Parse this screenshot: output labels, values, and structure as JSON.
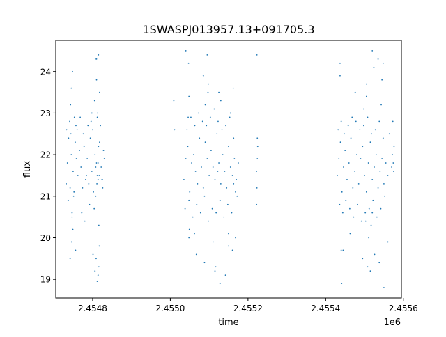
{
  "chart_data": {
    "type": "scatter",
    "title": "1SWASPJ013957.13+091705.3",
    "xlabel": "time",
    "ylabel": "flux",
    "x_offset_label": "1e6",
    "xlim": [
      2454705,
      2455595
    ],
    "ylim": [
      18.55,
      24.75
    ],
    "x_ticks": [
      2454800,
      2455000,
      2455200,
      2455400,
      2455600
    ],
    "x_tick_labels": [
      "2.4548",
      "2.4550",
      "2.4552",
      "2.4554",
      "2.4556"
    ],
    "y_ticks": [
      19,
      20,
      21,
      22,
      23,
      24
    ],
    "y_tick_labels": [
      "19",
      "20",
      "21",
      "22",
      "23",
      "24"
    ],
    "grid": false,
    "marker_color": "#1f77b4",
    "series": [
      {
        "x": [
          2454732,
          2454735,
          2454738,
          2454742,
          2454745,
          2454748,
          2454752,
          2454755,
          2454758,
          2454762,
          2454766,
          2454770,
          2454774,
          2454778,
          2454782,
          2454786,
          2454790,
          2454794,
          2454798,
          2454802,
          2454806,
          2454810,
          2454814,
          2454818,
          2454822,
          2454826,
          2454830,
          2454733,
          2454737,
          2454741,
          2454744,
          2454747,
          2454751,
          2454757,
          2454760,
          2454768,
          2454772,
          2454776,
          2454780,
          2454784,
          2454788,
          2454792,
          2454796,
          2454800,
          2454804,
          2454808,
          2454812,
          2454816,
          2454820,
          2454824,
          2454828,
          2454743,
          2454746,
          2454749,
          2454753,
          2454756,
          2454798,
          2454801,
          2454805,
          2454809,
          2454813,
          2454817,
          2454811,
          2454815,
          2454745,
          2454748,
          2454807,
          2454810,
          2454816,
          2454814,
          2454742,
          2454806,
          2454812,
          2454747,
          2454810,
          2454815,
          2454808,
          2454812,
          2454750,
          2454814,
          2454817,
          2454825,
          2454818,
          2455035,
          2455040,
          2455045,
          2455050,
          2455055,
          2455060,
          2455065,
          2455070,
          2455075,
          2455080,
          2455085,
          2455090,
          2455095,
          2455100,
          2455105,
          2455110,
          2455115,
          2455120,
          2455125,
          2455130,
          2455135,
          2455140,
          2455145,
          2455150,
          2455155,
          2455160,
          2455165,
          2455170,
          2455175,
          2455038,
          2455043,
          2455048,
          2455053,
          2455058,
          2455063,
          2455068,
          2455073,
          2455078,
          2455083,
          2455088,
          2455093,
          2455098,
          2455103,
          2455108,
          2455113,
          2455118,
          2455123,
          2455128,
          2455133,
          2455138,
          2455143,
          2455148,
          2455153,
          2455158,
          2455163,
          2455168,
          2455046,
          2455049,
          2455090,
          2455110,
          2455130,
          2455150,
          2455155,
          2455160,
          2455040,
          2455047,
          2455062,
          2455088,
          2455095,
          2455117,
          2455162,
          2455048,
          2455067,
          2455097,
          2455115,
          2455128,
          2455142,
          2455168,
          2455222,
          2455223,
          2455224,
          2455225,
          2455222,
          2455224,
          2455098,
          2455085,
          2455125,
          2455172,
          2455150,
          2455163,
          2455009,
          2455011,
          2455048,
          2455223,
          2455122,
          2455430,
          2455434,
          2455438,
          2455442,
          2455446,
          2455450,
          2455455,
          2455460,
          2455465,
          2455470,
          2455475,
          2455480,
          2455485,
          2455490,
          2455495,
          2455500,
          2455505,
          2455510,
          2455515,
          2455520,
          2455525,
          2455530,
          2455535,
          2455540,
          2455545,
          2455550,
          2455555,
          2455560,
          2455432,
          2455436,
          2455440,
          2455444,
          2455448,
          2455452,
          2455458,
          2455462,
          2455468,
          2455472,
          2455478,
          2455482,
          2455488,
          2455492,
          2455498,
          2455502,
          2455508,
          2455512,
          2455518,
          2455522,
          2455528,
          2455532,
          2455538,
          2455542,
          2455548,
          2455552,
          2455437,
          2455445,
          2455463,
          2455476,
          2455495,
          2455505,
          2455511,
          2455520,
          2455538,
          2455543,
          2455550,
          2455437,
          2455441,
          2455498,
          2455503,
          2455515,
          2455526,
          2455545,
          2455560,
          2455564,
          2455570,
          2455572,
          2455574,
          2455573,
          2455575,
          2455576,
          2455535,
          2455517,
          2455524,
          2455508,
          2455440,
          2455505,
          2455520,
          2455548
        ],
        "y": [
          21.3,
          21.8,
          22.4,
          21.2,
          22.0,
          21.6,
          21.1,
          22.3,
          21.9,
          21.5,
          22.1,
          21.7,
          21.2,
          22.2,
          21.4,
          21.9,
          21.3,
          22.4,
          21.6,
          21.1,
          22.0,
          21.8,
          21.4,
          22.3,
          21.7,
          21.2,
          21.9,
          22.6,
          20.9,
          22.8,
          22.5,
          20.5,
          21.0,
          22.7,
          22.6,
          22.9,
          20.6,
          22.5,
          20.4,
          21.5,
          22.7,
          20.8,
          22.8,
          22.6,
          20.7,
          21.0,
          22.9,
          20.3,
          22.7,
          21.4,
          22.1,
          23.2,
          19.9,
          20.2,
          22.9,
          19.7,
          23.0,
          19.6,
          23.3,
          19.5,
          23.0,
          19.8,
          21.3,
          22.2,
          23.6,
          24.0,
          24.3,
          23.8,
          19.3,
          19.1,
          19.5,
          19.2,
          18.95,
          20.6,
          24.3,
          24.4,
          21.7,
          21.5,
          21.6,
          21.8,
          21.5,
          21.4,
          23.5,
          21.4,
          21.9,
          22.2,
          21.1,
          21.8,
          22.0,
          21.6,
          21.3,
          22.4,
          21.7,
          21.2,
          22.3,
          21.9,
          21.5,
          22.1,
          21.7,
          21.4,
          22.5,
          21.8,
          21.3,
          22.0,
          21.6,
          21.2,
          22.2,
          21.7,
          21.5,
          21.9,
          21.4,
          21.8,
          20.7,
          22.6,
          20.9,
          22.9,
          20.5,
          22.7,
          20.8,
          23.0,
          20.6,
          22.8,
          21.0,
          22.7,
          20.4,
          22.9,
          20.7,
          23.1,
          20.6,
          22.8,
          20.9,
          22.6,
          20.5,
          22.7,
          20.8,
          22.9,
          20.6,
          22.4,
          21.1,
          22.9,
          20.2,
          23.2,
          19.9,
          23.3,
          20.1,
          23.0,
          19.7,
          24.5,
          24.2,
          20.1,
          19.4,
          24.4,
          19.3,
          23.6,
          23.4,
          19.6,
          23.5,
          19.2,
          18.9,
          19.1,
          20.0,
          21.6,
          21.2,
          21.9,
          22.2,
          20.8,
          22.4,
          23.7,
          23.9,
          23.5,
          21.0,
          19.8,
          21.3,
          23.3,
          22.6,
          20.0,
          24.4,
          21.6,
          21.5,
          21.9,
          22.3,
          21.1,
          21.7,
          22.1,
          21.4,
          21.8,
          22.4,
          21.2,
          21.6,
          22.0,
          21.3,
          21.9,
          22.2,
          21.5,
          21.1,
          21.8,
          22.3,
          21.4,
          21.7,
          22.0,
          21.2,
          21.6,
          21.9,
          21.3,
          21.8,
          21.5,
          22.6,
          20.8,
          22.8,
          20.6,
          22.5,
          20.9,
          22.7,
          20.7,
          22.9,
          20.5,
          22.8,
          20.8,
          22.6,
          20.4,
          22.7,
          20.6,
          22.9,
          20.7,
          22.5,
          20.9,
          22.6,
          20.5,
          22.8,
          20.7,
          22.4,
          21.0,
          24.2,
          19.7,
          20.1,
          23.5,
          19.5,
          23.7,
          20.0,
          24.5,
          19.4,
          23.2,
          18.8,
          23.9,
          18.9,
          23.1,
          20.4,
          19.2,
          19.6,
          23.8,
          19.9,
          22.5,
          21.7,
          22.0,
          21.8,
          22.8,
          21.6,
          22.2,
          24.3,
          20.3,
          24.1,
          19.3,
          19.7,
          23.4,
          20.6,
          24.2
        ]
      }
    ]
  }
}
